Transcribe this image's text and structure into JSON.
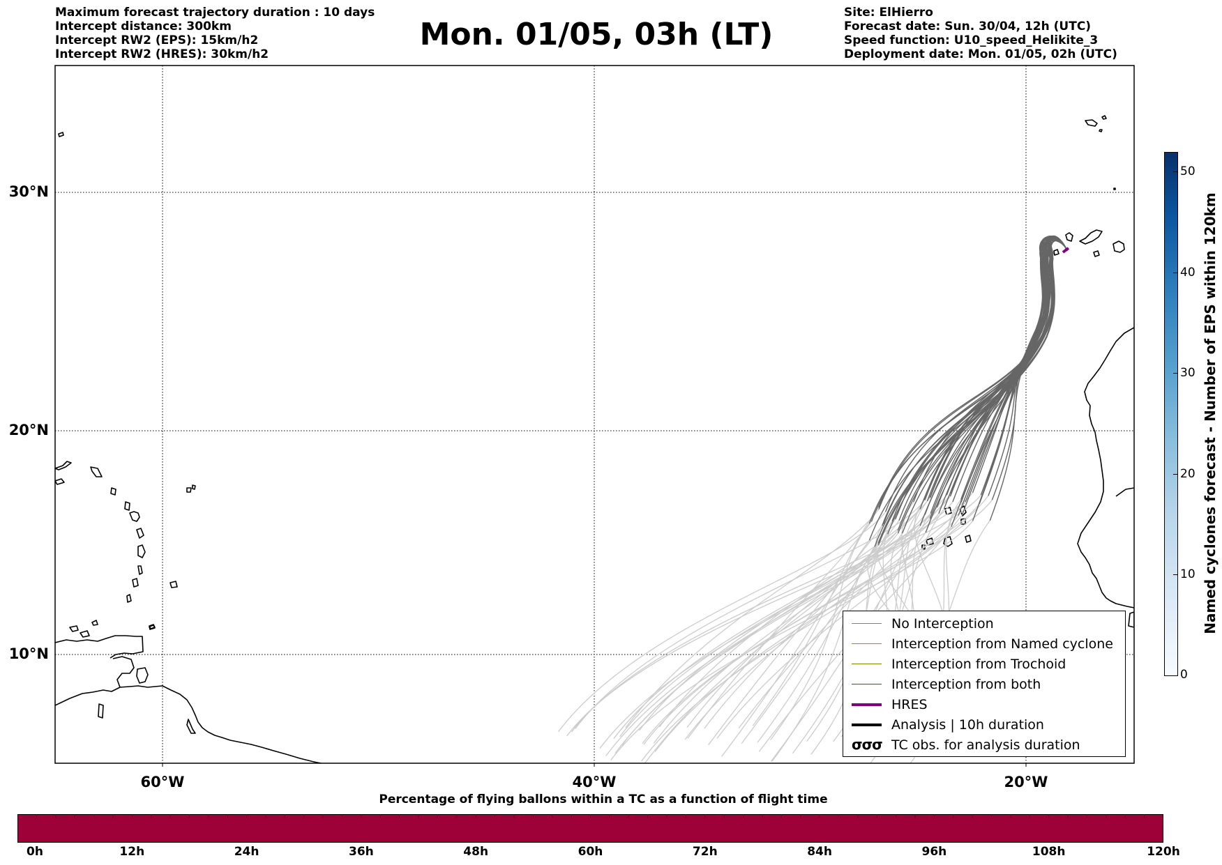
{
  "header": {
    "info_left": [
      "Maximum forecast trajectory duration : 10 days",
      "Intercept distance: 300km",
      "Intercept RW2 (EPS):  15km/h2",
      "Intercept RW2 (HRES): 30km/h2"
    ],
    "title": "Mon. 01/05, 03h (LT)",
    "info_right": [
      "Site: ElHierro",
      "Forecast date: Sun. 30/04, 12h (UTC)",
      "Speed function: U10_speed_Helikite_3",
      "Deployment date: Mon. 01/05, 02h (UTC)"
    ]
  },
  "map": {
    "lat_labels": [
      "30°N",
      "20°N",
      "10°N"
    ],
    "lon_labels": [
      "60°W",
      "40°W",
      "20°W"
    ],
    "lat_range": [
      5,
      35
    ],
    "lon_range": [
      -65,
      -15
    ],
    "site": {
      "name": "ElHierro",
      "lon": -18.0,
      "lat": 27.7
    },
    "trajectory_colors": {
      "no_interception_recent": "#666666",
      "no_interception_old": "#cccccc",
      "hres": "#800080"
    }
  },
  "legend": {
    "items": [
      {
        "label": "No Interception",
        "color": "#808080",
        "width": 1
      },
      {
        "label": "Interception from Named cyclone",
        "color": "#ff5a1e",
        "width": 1
      },
      {
        "label": "Interception from Trochoid",
        "color": "#808000",
        "width": 1
      },
      {
        "label": "Interception from both",
        "color": "#008000",
        "width": 1
      },
      {
        "label": "HRES",
        "color": "#800080",
        "width": 4
      },
      {
        "label": "Analysis | 10h duration",
        "color": "#000000",
        "width": 4
      },
      {
        "label": "TC obs. for analysis duration",
        "glyph": "σσσ"
      }
    ]
  },
  "colorbar": {
    "label": "Named cyclones forecast - Number of EPS within 120km",
    "ticks": [
      "50",
      "40",
      "30",
      "20",
      "10",
      "0"
    ],
    "min": 0,
    "max": 52
  },
  "bottom": {
    "title": "Percentage of flying ballons within a TC as a function of flight time",
    "bar_color": "#9e0038",
    "ticks": [
      "0h",
      "12h",
      "24h",
      "36h",
      "48h",
      "60h",
      "72h",
      "84h",
      "96h",
      "108h",
      "120h"
    ]
  }
}
